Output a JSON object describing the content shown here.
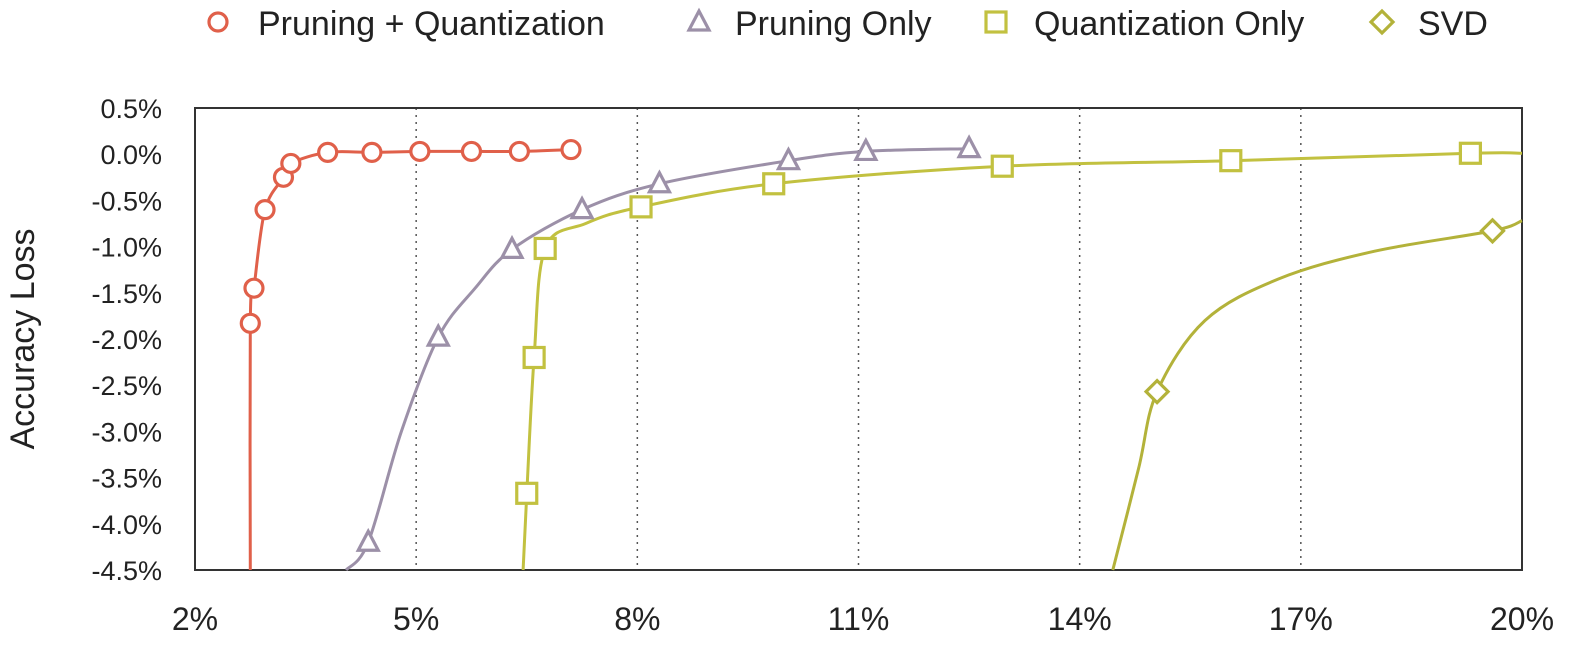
{
  "chart_data": {
    "type": "line",
    "title": "",
    "xlabel": "",
    "ylabel": "Accuracy Loss",
    "xlim": [
      2,
      20
    ],
    "ylim": [
      -4.5,
      0.5
    ],
    "x_ticks": [
      2,
      5,
      8,
      11,
      14,
      17,
      20
    ],
    "x_tick_labels": [
      "2%",
      "5%",
      "8%",
      "11%",
      "14%",
      "17%",
      "20%"
    ],
    "y_ticks": [
      0.5,
      0.0,
      -0.5,
      -1.0,
      -1.5,
      -2.0,
      -2.5,
      -3.0,
      -3.5,
      -4.0,
      -4.5
    ],
    "y_tick_labels": [
      "0.5%",
      "0.0%",
      "-0.5%",
      "-1.0%",
      "-1.5%",
      "-2.0%",
      "-2.5%",
      "-3.0%",
      "-3.5%",
      "-4.0%",
      "-4.5%"
    ],
    "grid": {
      "vertical": true,
      "horizontal": false,
      "style": "dotted"
    },
    "legend_position": "top",
    "series": [
      {
        "name": "Pruning + Quantization",
        "marker": "circle",
        "color": "#e0604a",
        "points": [
          [
            2.75,
            -1.83
          ],
          [
            2.8,
            -1.45
          ],
          [
            2.95,
            -0.6
          ],
          [
            3.2,
            -0.25
          ],
          [
            3.3,
            -0.1
          ],
          [
            3.8,
            0.02
          ],
          [
            4.4,
            0.02
          ],
          [
            5.05,
            0.03
          ],
          [
            5.75,
            0.03
          ],
          [
            6.4,
            0.03
          ],
          [
            7.1,
            0.05
          ]
        ],
        "curve": [
          [
            2.75,
            -4.5
          ],
          [
            2.75,
            -1.83
          ],
          [
            2.8,
            -1.45
          ],
          [
            2.95,
            -0.6
          ],
          [
            3.2,
            -0.25
          ],
          [
            3.3,
            -0.1
          ],
          [
            3.8,
            0.02
          ],
          [
            4.4,
            0.02
          ],
          [
            5.05,
            0.03
          ],
          [
            5.75,
            0.03
          ],
          [
            6.4,
            0.03
          ],
          [
            7.1,
            0.05
          ]
        ]
      },
      {
        "name": "Pruning Only",
        "marker": "triangle",
        "color": "#9c90a8",
        "points": [
          [
            4.35,
            -4.2
          ],
          [
            5.3,
            -1.98
          ],
          [
            6.3,
            -1.03
          ],
          [
            7.25,
            -0.6
          ],
          [
            8.3,
            -0.32
          ],
          [
            10.05,
            -0.07
          ],
          [
            11.1,
            0.03
          ],
          [
            12.5,
            0.06
          ]
        ],
        "curve": [
          [
            4.05,
            -4.5
          ],
          [
            4.35,
            -4.2
          ],
          [
            4.8,
            -3.0
          ],
          [
            5.3,
            -1.98
          ],
          [
            5.8,
            -1.45
          ],
          [
            6.3,
            -1.03
          ],
          [
            7.25,
            -0.6
          ],
          [
            8.3,
            -0.32
          ],
          [
            10.05,
            -0.07
          ],
          [
            11.1,
            0.03
          ],
          [
            12.5,
            0.06
          ]
        ]
      },
      {
        "name": "Quantization Only",
        "marker": "square",
        "color": "#c2c140",
        "points": [
          [
            6.5,
            -3.67
          ],
          [
            6.6,
            -2.2
          ],
          [
            6.75,
            -1.02
          ],
          [
            8.05,
            -0.57
          ],
          [
            9.85,
            -0.32
          ],
          [
            12.95,
            -0.13
          ],
          [
            16.05,
            -0.07
          ],
          [
            19.3,
            0.01
          ]
        ],
        "curve": [
          [
            6.45,
            -4.5
          ],
          [
            6.5,
            -3.67
          ],
          [
            6.6,
            -2.2
          ],
          [
            6.75,
            -1.02
          ],
          [
            7.3,
            -0.75
          ],
          [
            8.05,
            -0.57
          ],
          [
            9.85,
            -0.32
          ],
          [
            12.95,
            -0.13
          ],
          [
            16.05,
            -0.07
          ],
          [
            19.3,
            0.01
          ],
          [
            20.0,
            0.01
          ]
        ]
      },
      {
        "name": "SVD",
        "marker": "diamond",
        "color": "#b3b23a",
        "points": [
          [
            15.05,
            -2.57
          ],
          [
            19.6,
            -0.83
          ]
        ],
        "curve": [
          [
            14.45,
            -4.5
          ],
          [
            14.8,
            -3.4
          ],
          [
            15.05,
            -2.57
          ],
          [
            15.7,
            -1.8
          ],
          [
            16.7,
            -1.35
          ],
          [
            18.0,
            -1.05
          ],
          [
            19.6,
            -0.83
          ],
          [
            20.0,
            -0.72
          ]
        ]
      }
    ]
  }
}
